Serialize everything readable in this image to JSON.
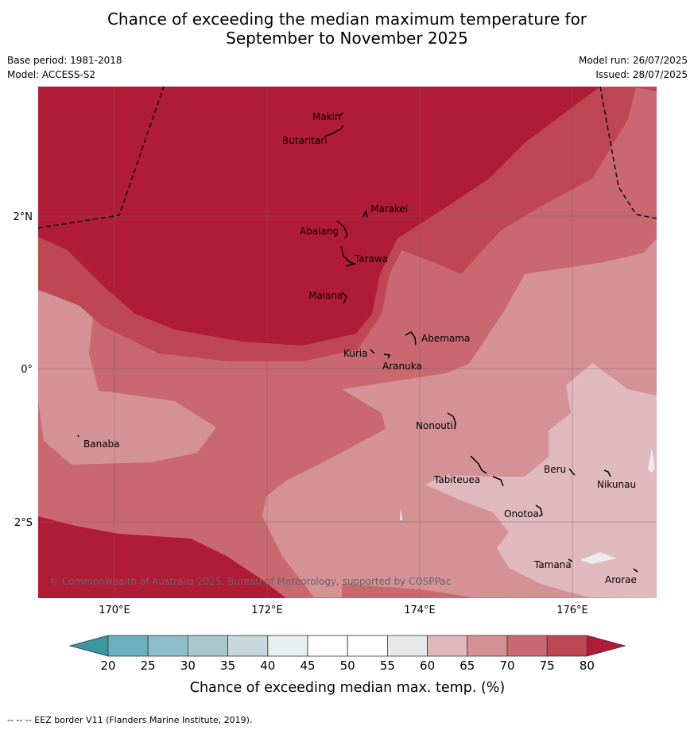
{
  "title": {
    "line1": "Chance of exceeding the median maximum temperature for",
    "line2": "September to November 2025"
  },
  "meta": {
    "base_period": "Base period: 1981-2018",
    "model": "Model: ACCESS-S2",
    "model_run": "Model run: 26/07/2025",
    "issued": "Issued: 28/07/2025"
  },
  "map": {
    "lat_ticks": [
      "2°N",
      "0°",
      "2°S"
    ],
    "lon_ticks": [
      "170°E",
      "172°E",
      "174°E",
      "176°E"
    ],
    "places": [
      "Makin",
      "Butaritari",
      "Marakei",
      "Abaiang",
      "Tarawa",
      "Maiana",
      "Abemama",
      "Kuria",
      "Aranuka",
      "Banaba",
      "Nonouti",
      "Beru",
      "Nikunau",
      "Tabiteuea",
      "Onotoa",
      "Tamana",
      "Arorae"
    ],
    "copyright": "© Commonwealth of Australia 2025, Bureau of Meteorology, supported by COSPPac"
  },
  "colorbar": {
    "ticks": [
      "20",
      "25",
      "30",
      "35",
      "40",
      "45",
      "50",
      "55",
      "60",
      "65",
      "70",
      "75",
      "80"
    ],
    "colors": {
      "below_20": "#3c97a4",
      "20_25": "#6cafbe",
      "25_30": "#8dbec9",
      "30_35": "#a8c8ce",
      "35_40": "#c8d8dc",
      "40_45": "#e9eff1",
      "45_50": "#ffffff",
      "50_55": "#ffffff",
      "55_60": "#e8e8e8",
      "60_65": "#e0b9be",
      "65_70": "#d49196",
      "70_75": "#c96870",
      "75_80": "#bf4653",
      "above_80": "#b01c38"
    },
    "label": "Chance of exceeding median max. temp. (%)"
  },
  "footer": "--  --  -- EEZ border V11 (Flanders Marine Institute, 2019)."
}
